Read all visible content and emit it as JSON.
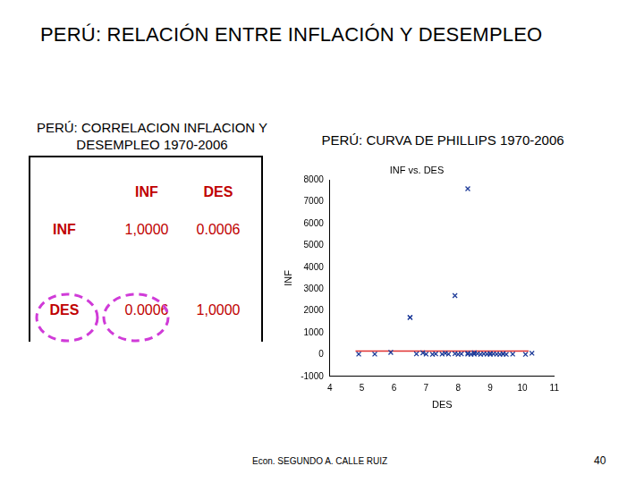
{
  "page": {
    "title": "PERÚ: RELACIÓN ENTRE INFLACIÓN Y DESEMPLEO",
    "table_title": "PERÚ: CORRELACION INFLACION Y DESEMPLEO 1970-2006",
    "chart_header": "PERÚ: CURVA DE PHILLIPS 1970-2006",
    "table": {
      "header": [
        "INF",
        "DES"
      ],
      "rows": [
        [
          "INF",
          "1,0000",
          "0.0006"
        ],
        [
          "DES",
          "0.0006",
          "1,0000"
        ]
      ]
    },
    "footer": "Econ. SEGUNDO A. CALLE RUIZ",
    "page_number": "40"
  },
  "chart_data": {
    "type": "scatter",
    "title": "INF vs. DES",
    "x_label": "DES",
    "y_label": "INF",
    "xlim": [
      4,
      11
    ],
    "xticks": [
      4,
      5,
      6,
      7,
      8,
      9,
      10,
      11
    ],
    "ylim": [
      -1000,
      8000
    ],
    "yticks": [
      -1000,
      0,
      1000,
      2000,
      3000,
      4000,
      5000,
      6000,
      7000,
      8000
    ],
    "grid": false,
    "series": [
      {
        "type": "scatter",
        "marker": "cross",
        "color": "#1f3c99",
        "x": [
          4.9,
          5.4,
          5.9,
          6.5,
          6.7,
          6.9,
          7.0,
          7.2,
          7.3,
          7.5,
          7.6,
          7.7,
          7.9,
          8.0,
          8.1,
          8.3,
          8.3,
          8.4,
          8.5,
          8.5,
          8.6,
          8.7,
          8.8,
          8.9,
          9.0,
          9.0,
          9.1,
          9.2,
          9.3,
          9.4,
          9.4,
          9.5,
          9.7,
          10.1,
          10.3,
          6.5,
          7.9,
          8.3
        ],
        "values": [
          20,
          20,
          100,
          1700,
          30,
          80,
          20,
          10,
          30,
          20,
          60,
          20,
          40,
          10,
          30,
          20,
          60,
          10,
          20,
          80,
          40,
          10,
          30,
          20,
          10,
          50,
          30,
          20,
          10,
          20,
          40,
          10,
          20,
          10,
          60,
          1700,
          2700,
          7600
        ]
      },
      {
        "type": "line",
        "line_style": "solid",
        "color": "#e03030",
        "x": [
          4.8,
          10.2
        ],
        "values": [
          160,
          160
        ]
      }
    ]
  }
}
